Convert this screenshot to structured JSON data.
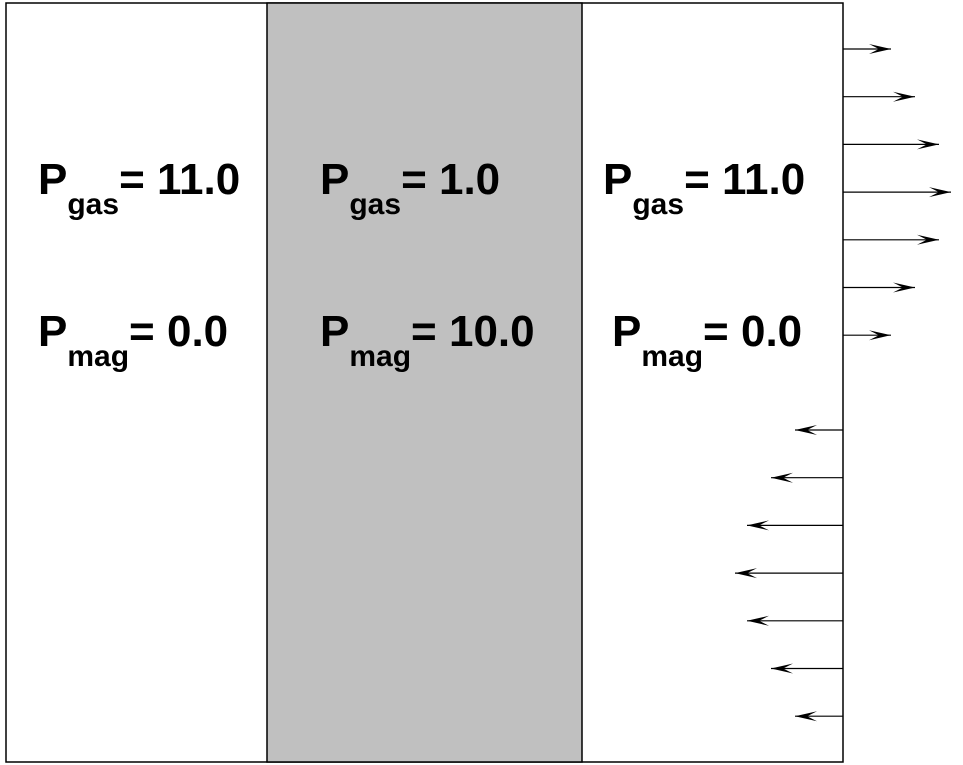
{
  "colors": {
    "background": "#ffffff",
    "magnetized_region": "#c0c0c0",
    "stroke": "#000000"
  },
  "regions": [
    {
      "name": "left",
      "shaded": false,
      "gas": {
        "symbol": "P",
        "subscript": "gas",
        "equals": "= 11.0"
      },
      "mag": {
        "symbol": "P",
        "subscript": "mag",
        "equals": "= 0.0"
      }
    },
    {
      "name": "middle",
      "shaded": true,
      "gas": {
        "symbol": "P",
        "subscript": "gas",
        "equals": "= 1.0"
      },
      "mag": {
        "symbol": "P",
        "subscript": "mag",
        "equals": "= 10.0"
      }
    },
    {
      "name": "right",
      "shaded": false,
      "gas": {
        "symbol": "P",
        "subscript": "gas",
        "equals": "= 11.0"
      },
      "mag": {
        "symbol": "P",
        "subscript": "mag",
        "equals": "= 0.0"
      }
    }
  ],
  "velocity_profile": {
    "outward_arrows": [
      0.4,
      0.6,
      0.8,
      0.9,
      0.8,
      0.6,
      0.4
    ],
    "inward_arrows": [
      0.4,
      0.6,
      0.8,
      0.9,
      0.8,
      0.6,
      0.4
    ]
  }
}
